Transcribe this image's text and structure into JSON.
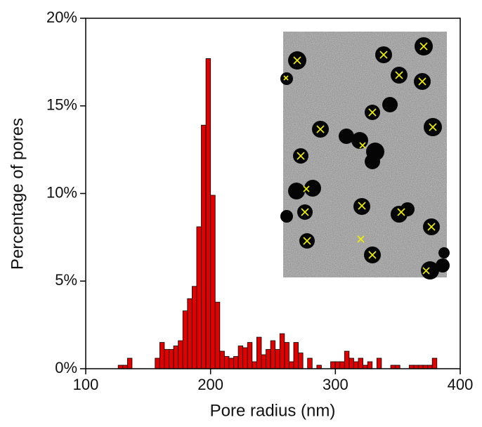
{
  "chart_data": {
    "type": "histogram",
    "xlabel": "Pore radius (nm)",
    "ylabel": "Percentage of pores",
    "bins": [
      126,
      129.7,
      133.4,
      137.1,
      140.8,
      144.5,
      148.2,
      151.9,
      155.6,
      159.3,
      163,
      166.7,
      170.4,
      174.1,
      177.8,
      181.5,
      185.2,
      188.9,
      192.6,
      196.3,
      200,
      203.7,
      207.4,
      211.1,
      214.8,
      218.5,
      222.2,
      225.9,
      229.6,
      233.3,
      237,
      240.7,
      244.4,
      248.1,
      251.8,
      255.5,
      259.2,
      262.9,
      266.6,
      270.3,
      274,
      277.7,
      281.4,
      285.1,
      288.8,
      292.5,
      296.2,
      299.9,
      303.6,
      307.3,
      311,
      314.7,
      318.4,
      322.1,
      325.8,
      329.5,
      333.2,
      336.9,
      340.6,
      344.3,
      348,
      351.7,
      355.4,
      359.1,
      362.8,
      366.5,
      370.2,
      373.9,
      377.6,
      381.3
    ],
    "values": [
      0.2,
      0.2,
      0.6,
      0,
      0,
      0,
      0,
      0,
      0.6,
      1.5,
      1.1,
      1.1,
      1.3,
      1.6,
      3.3,
      4.0,
      4.7,
      8.1,
      13.9,
      17.7,
      9.9,
      3.8,
      1.0,
      0.7,
      0.6,
      0.7,
      1.3,
      1.2,
      1.5,
      0.4,
      1.8,
      0.8,
      1.1,
      1.6,
      1.1,
      2.0,
      1.5,
      0.4,
      1.5,
      0.9,
      0,
      0.6,
      0,
      0.2,
      0,
      0,
      0.4,
      0.4,
      0.4,
      1.0,
      0.6,
      0.4,
      0.6,
      0.2,
      0.4,
      0,
      0.6,
      0,
      0,
      0.2,
      0.2,
      0,
      0,
      0.2,
      0.2,
      0.2,
      0.2,
      0.2,
      0.6
    ],
    "color": "#e00000",
    "xlim": [
      100,
      400
    ],
    "xticks": [
      100,
      200,
      300,
      400
    ],
    "ylim": [
      0,
      20
    ],
    "yticks": [
      {
        "value": 0,
        "label": "0%"
      },
      {
        "value": 5,
        "label": "5%"
      },
      {
        "value": 10,
        "label": "10%"
      },
      {
        "value": 15,
        "label": "15%"
      },
      {
        "value": 20,
        "label": "20%"
      }
    ]
  }
}
